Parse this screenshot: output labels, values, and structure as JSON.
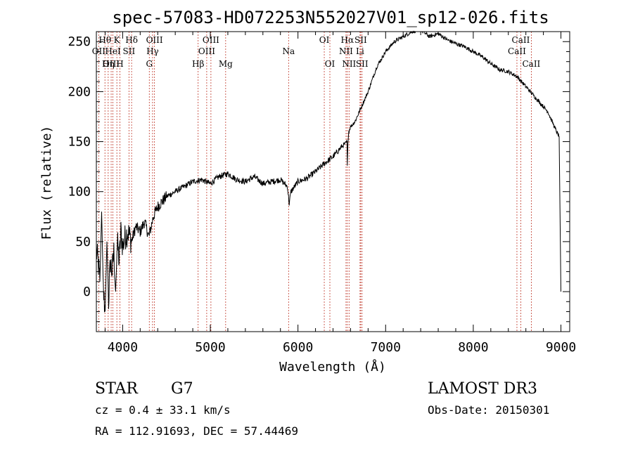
{
  "chart_data": {
    "type": "line",
    "title": "spec-57083-HD072253N552027V01_sp12-026.fits",
    "xlabel": "Wavelength (Å)",
    "ylabel": "Flux (relative)",
    "xlim": [
      3700,
      9100
    ],
    "ylim": [
      -40,
      260
    ],
    "xticks": [
      4000,
      5000,
      6000,
      7000,
      8000,
      9000
    ],
    "yticks": [
      0,
      50,
      100,
      150,
      200,
      250
    ],
    "grid": false,
    "series": [
      {
        "name": "flux",
        "color": "#000000",
        "x": [
          3700,
          3720,
          3740,
          3760,
          3780,
          3800,
          3820,
          3840,
          3860,
          3880,
          3900,
          3920,
          3940,
          3960,
          3980,
          4000,
          4030,
          4060,
          4100,
          4150,
          4200,
          4250,
          4300,
          4350,
          4400,
          4450,
          4500,
          4600,
          4700,
          4800,
          4900,
          5000,
          5100,
          5200,
          5300,
          5400,
          5500,
          5600,
          5700,
          5800,
          5880,
          5900,
          5920,
          6000,
          6100,
          6200,
          6300,
          6400,
          6450,
          6500,
          6540,
          6560,
          6563,
          6570,
          6580,
          6600,
          6650,
          6700,
          6750,
          6800,
          6900,
          7000,
          7100,
          7200,
          7300,
          7400,
          7500,
          7600,
          7700,
          7800,
          7900,
          8000,
          8100,
          8200,
          8300,
          8400,
          8500,
          8600,
          8700,
          8800,
          8850,
          8900,
          8950,
          8980,
          9000
        ],
        "y": [
          40,
          30,
          10,
          80,
          0,
          -20,
          50,
          -10,
          30,
          20,
          40,
          0,
          50,
          30,
          60,
          45,
          55,
          60,
          50,
          65,
          60,
          70,
          55,
          75,
          85,
          90,
          95,
          100,
          105,
          110,
          112,
          108,
          115,
          118,
          112,
          110,
          115,
          108,
          110,
          112,
          105,
          88,
          100,
          110,
          113,
          120,
          128,
          135,
          140,
          145,
          148,
          150,
          125,
          150,
          160,
          165,
          170,
          180,
          190,
          200,
          225,
          240,
          250,
          255,
          260,
          262,
          255,
          258,
          252,
          248,
          245,
          240,
          235,
          228,
          222,
          220,
          215,
          205,
          195,
          185,
          180,
          170,
          160,
          155,
          0
        ]
      }
    ],
    "spectral_lines": [
      {
        "name": "Hθ",
        "wavelength": 3798,
        "row": 0
      },
      {
        "name": "OII",
        "wavelength": 3727,
        "row": 1
      },
      {
        "name": "OIII",
        "wavelength": 3869,
        "row": 2
      },
      {
        "name": "K",
        "wavelength": 3934,
        "row": 0
      },
      {
        "name": "HeI",
        "wavelength": 3889,
        "row": 1
      },
      {
        "name": "Hη",
        "wavelength": 3835,
        "row": 2
      },
      {
        "name": "H",
        "wavelength": 3969,
        "row": 2
      },
      {
        "name": "Hδ",
        "wavelength": 4102,
        "row": 0
      },
      {
        "name": "SII",
        "wavelength": 4072,
        "row": 1
      },
      {
        "name": "OIII",
        "wavelength": 4363,
        "row": 0
      },
      {
        "name": "Hγ",
        "wavelength": 4341,
        "row": 1
      },
      {
        "name": "G",
        "wavelength": 4304,
        "row": 2
      },
      {
        "name": "Hβ",
        "wavelength": 4861,
        "row": 2
      },
      {
        "name": "OIII",
        "wavelength": 5007,
        "row": 0
      },
      {
        "name": "OIII",
        "wavelength": 4959,
        "row": 1
      },
      {
        "name": "Mg",
        "wavelength": 5175,
        "row": 2
      },
      {
        "name": "Na",
        "wavelength": 5893,
        "row": 1
      },
      {
        "name": "OI",
        "wavelength": 6300,
        "row": 0
      },
      {
        "name": "OI",
        "wavelength": 6364,
        "row": 2
      },
      {
        "name": "Hα",
        "wavelength": 6563,
        "row": 0
      },
      {
        "name": "NII",
        "wavelength": 6548,
        "row": 1
      },
      {
        "name": "NII",
        "wavelength": 6583,
        "row": 2
      },
      {
        "name": "SII",
        "wavelength": 6716,
        "row": 0
      },
      {
        "name": "Li",
        "wavelength": 6708,
        "row": 1
      },
      {
        "name": "SII",
        "wavelength": 6731,
        "row": 2
      },
      {
        "name": "CaII",
        "wavelength": 8542,
        "row": 0
      },
      {
        "name": "CaII",
        "wavelength": 8498,
        "row": 1
      },
      {
        "name": "CaII",
        "wavelength": 8662,
        "row": 2
      }
    ]
  },
  "info": {
    "object_class": "STAR",
    "subclass": "G7",
    "survey": "LAMOST DR3",
    "redshift_label": "cz = 0.4 ± 33.1 km/s",
    "obs_date": "Obs-Date: 20150301",
    "coords": "RA = 112.91693, DEC =  57.44469"
  }
}
